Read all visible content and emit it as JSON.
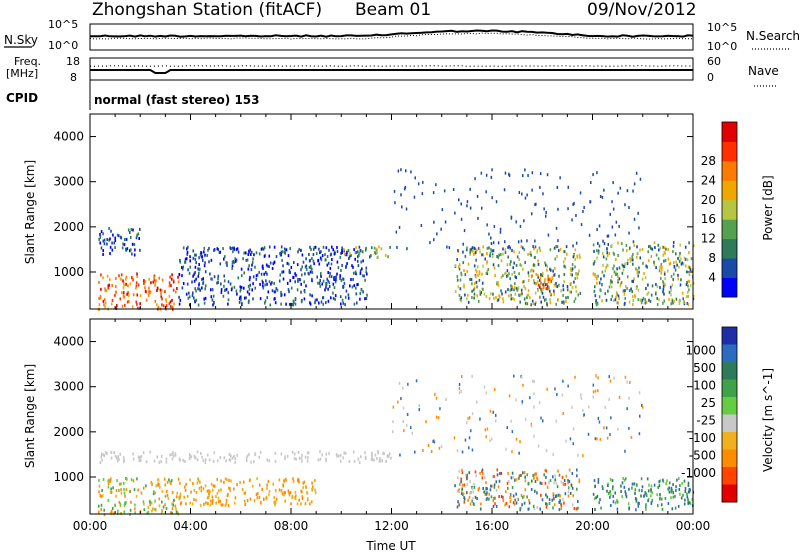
{
  "header": {
    "title": "Zhongshan Station (fitACF)",
    "beam": "Beam 01",
    "date": "09/Nov/2012"
  },
  "noise_panel": {
    "left_label": "N.Sky",
    "left_ticks": [
      "10^5",
      "10^0"
    ],
    "right_ticks": [
      "10^5",
      "10^0"
    ],
    "right_label": "N.Search"
  },
  "freq_panel": {
    "left_label_top": "Freq.",
    "left_label_bottom": "[MHz]",
    "left_ticks": [
      "18",
      "8"
    ],
    "right_ticks": [
      "60",
      "0"
    ],
    "right_label": "Nave"
  },
  "cpid": {
    "label": "CPID",
    "value": "normal (fast stereo) 153"
  },
  "chart_data": [
    {
      "type": "heatmap",
      "title": "",
      "xlabel": "",
      "ylabel": "Slant Range [km]",
      "xlim": [
        "00:00",
        "24:00"
      ],
      "ylim": [
        180,
        4500
      ],
      "yticks": [
        "1000",
        "2000",
        "3000",
        "4000"
      ],
      "colorbar": {
        "label": "Power [dB]",
        "ticks": [
          "4",
          "8",
          "12",
          "16",
          "20",
          "24",
          "28"
        ],
        "colors": [
          "#0000ff",
          "#1a4aa8",
          "#2f7a5a",
          "#56a052",
          "#b6c640",
          "#f0a800",
          "#ff7a00",
          "#ff3000",
          "#e00000"
        ]
      },
      "echo_regions": [
        {
          "t_start": 0.3,
          "t_end": 3.5,
          "r_start": 200,
          "r_end": 1000,
          "level": "high"
        },
        {
          "t_start": 0.3,
          "t_end": 2.0,
          "r_start": 1400,
          "r_end": 2000,
          "level": "low"
        },
        {
          "t_start": 3.5,
          "t_end": 11.0,
          "r_start": 300,
          "r_end": 1600,
          "level": "low"
        },
        {
          "t_start": 10.0,
          "t_end": 12.0,
          "r_start": 1350,
          "r_end": 1600,
          "level": "medium"
        },
        {
          "t_start": 14.5,
          "t_end": 19.5,
          "r_start": 300,
          "r_end": 1600,
          "level": "medium"
        },
        {
          "t_start": 17.5,
          "t_end": 18.5,
          "r_start": 600,
          "r_end": 1000,
          "level": "high"
        },
        {
          "t_start": 20.0,
          "t_end": 24.0,
          "r_start": 300,
          "r_end": 1700,
          "level": "medium"
        }
      ]
    },
    {
      "type": "heatmap",
      "title": "",
      "xlabel": "Time UT",
      "ylabel": "Slant Range [km]",
      "xlim": [
        "00:00",
        "24:00"
      ],
      "xticks": [
        "00:00",
        "04:00",
        "08:00",
        "12:00",
        "16:00",
        "20:00",
        "00:00"
      ],
      "ylim": [
        180,
        4500
      ],
      "yticks": [
        "1000",
        "2000",
        "3000",
        "4000"
      ],
      "colorbar": {
        "label": "Velocity [m s^-1]",
        "ticks": [
          "1000",
          "500",
          "100",
          "25",
          "-25",
          "-100",
          "-500",
          "-1000"
        ],
        "colors": [
          "#1e2ea8",
          "#2c6cc0",
          "#2f7a5a",
          "#3fa24a",
          "#66cc44",
          "#c8c8c8",
          "#f0b020",
          "#ff8c00",
          "#ff4400",
          "#e00000"
        ]
      },
      "echo_regions": [
        {
          "t_start": 0.3,
          "t_end": 3.5,
          "r_start": 200,
          "r_end": 1000,
          "level": "mixed-orange-green"
        },
        {
          "t_start": 3.5,
          "t_end": 9.0,
          "r_start": 400,
          "r_end": 1000,
          "level": "orange"
        },
        {
          "t_start": 0.3,
          "t_end": 12.0,
          "r_start": 1350,
          "r_end": 1600,
          "level": "ground-scatter"
        },
        {
          "t_start": 14.5,
          "t_end": 19.5,
          "r_start": 300,
          "r_end": 1200,
          "level": "mixed"
        },
        {
          "t_start": 20.0,
          "t_end": 24.0,
          "r_start": 300,
          "r_end": 1000,
          "level": "green"
        }
      ]
    }
  ]
}
